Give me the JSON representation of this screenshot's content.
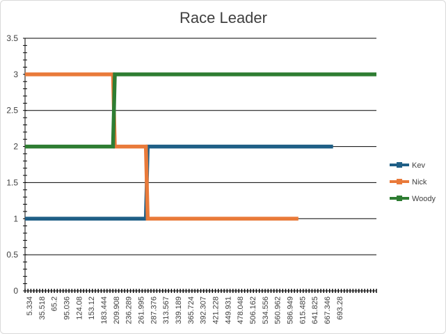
{
  "chart_data": {
    "type": "line",
    "title": "Race Leader",
    "xlabel": "",
    "ylabel": "",
    "ylim": [
      0,
      3.5
    ],
    "yticks": [
      0,
      0.5,
      1,
      1.5,
      2,
      2.5,
      3,
      3.5
    ],
    "ytick_labels": [
      "0",
      "0.5",
      "1",
      "1.5",
      "2",
      "2.5",
      "3",
      "3.5"
    ],
    "x_tick_labels": [
      "5.334",
      "35.518",
      "65.2",
      "95.036",
      "124.08",
      "153.12",
      "183.444",
      "209.908",
      "236.289",
      "261.995",
      "287.376",
      "313.567",
      "339.189",
      "365.724",
      "392.307",
      "421.228",
      "449.931",
      "478.048",
      "506.162",
      "534.556",
      "560.962",
      "586.949",
      "615.485",
      "641.825",
      "667.346",
      "693.28"
    ],
    "grid": true,
    "legend_position": "right",
    "series": [
      {
        "name": "Kev",
        "color": "#1f5f86",
        "points": [
          [
            5.334,
            1
          ],
          [
            270,
            1
          ],
          [
            274,
            2
          ],
          [
            680,
            2
          ]
        ]
      },
      {
        "name": "Nick",
        "color": "#e97a3a",
        "points": [
          [
            5.334,
            3
          ],
          [
            198,
            3
          ],
          [
            202,
            2
          ],
          [
            270,
            2
          ],
          [
            274,
            1
          ],
          [
            604,
            1
          ]
        ]
      },
      {
        "name": "Woody",
        "color": "#2e7d32",
        "points": [
          [
            5.334,
            2
          ],
          [
            198,
            2
          ],
          [
            202,
            3
          ],
          [
            775,
            3
          ]
        ]
      }
    ]
  }
}
